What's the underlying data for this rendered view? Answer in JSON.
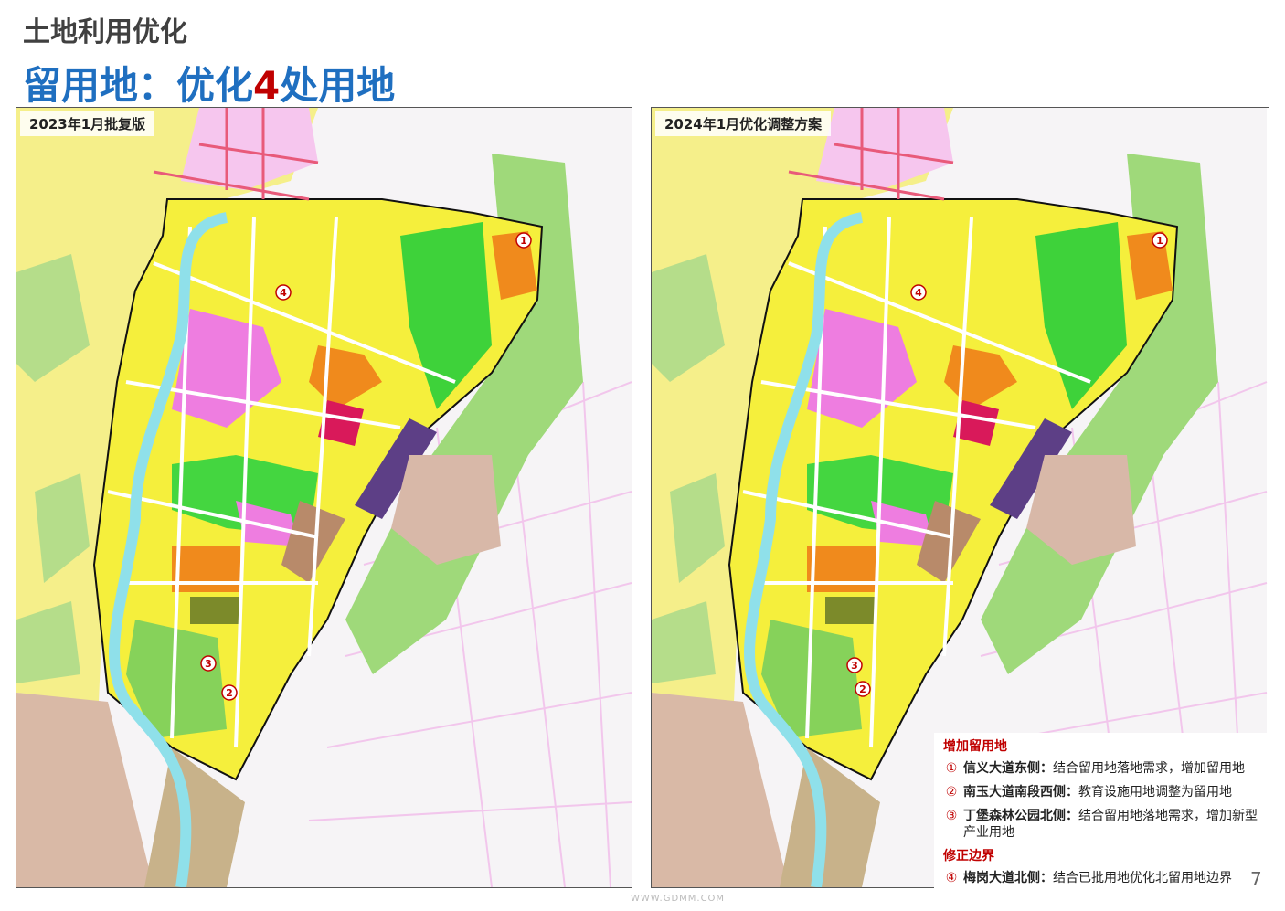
{
  "header": {
    "title": "土地利用优化",
    "subtitle": {
      "prefix": "留用地：优化",
      "number": "4",
      "suffix": "处用地"
    }
  },
  "maps": [
    {
      "label": "2023年1月批复版",
      "markers": [
        "1",
        "2",
        "3",
        "4"
      ]
    },
    {
      "label": "2024年1月优化调整方案",
      "markers": [
        "1",
        "2",
        "3",
        "4"
      ]
    }
  ],
  "legend": {
    "sections": [
      {
        "heading": "增加留用地",
        "items": [
          {
            "marker": "①",
            "name": "信义大道东侧：",
            "text": "结合留用地落地需求，增加留用地"
          },
          {
            "marker": "②",
            "name": "南玉大道南段西侧：",
            "text": "教育设施用地调整为留用地"
          },
          {
            "marker": "③",
            "name": "丁堡森林公园北侧：",
            "text": "结合留用地落地需求，增加新型产业用地"
          }
        ]
      },
      {
        "heading": "修正边界",
        "items": [
          {
            "marker": "④",
            "name": "梅岗大道北侧：",
            "text": "结合已批用地优化北留用地边界"
          }
        ]
      }
    ]
  },
  "page_number": "7",
  "watermark": "WWW.GDMM.COM"
}
